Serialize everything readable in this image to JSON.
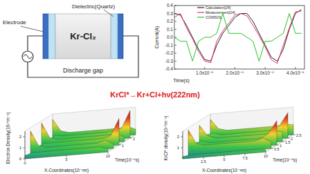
{
  "diagram": {
    "dielectric_label": "Dielectric(Quartz)",
    "electrode_label": "Electrode",
    "gas_label": "Kr-Cl₂",
    "gap_label": "Discharge gap"
  },
  "equation": "KrCl*→Kr+Cl+hν(222nm)",
  "chart_data": [
    {
      "type": "line",
      "x_label": "Time(s)",
      "y_label": "Current(A)",
      "x": [
        0,
        2e-06,
        4e-06,
        6e-06,
        8e-06,
        1e-05,
        1.2e-05,
        1.4e-05,
        1.6e-05,
        1.8e-05,
        2e-05,
        2.2e-05,
        2.4e-05,
        2.6e-05,
        2.8e-05,
        3e-05,
        3.2e-05,
        3.4e-05,
        3.6e-05,
        3.8e-05,
        4e-05,
        4.2e-05
      ],
      "series": [
        {
          "name": "Calculation[24]",
          "color": "#222222",
          "values": [
            0.3,
            0.28,
            0.15,
            0.0,
            -0.15,
            -0.28,
            -0.3,
            -0.1,
            0.05,
            0.15,
            0.25,
            0.3,
            0.3,
            0.2,
            0.05,
            -0.1,
            -0.25,
            -0.3,
            -0.15,
            0.1,
            0.3,
            0.35
          ]
        },
        {
          "name": "Measurement[24]",
          "color": "#e8306a",
          "values": [
            0.25,
            0.3,
            0.12,
            -0.02,
            -0.18,
            -0.3,
            -0.32,
            -0.05,
            0.08,
            0.18,
            0.28,
            0.3,
            0.27,
            0.15,
            0.02,
            -0.12,
            -0.28,
            -0.33,
            -0.1,
            0.12,
            0.32,
            0.33
          ]
        },
        {
          "name": "COMSOL",
          "color": "#22c322",
          "values": [
            0.0,
            -0.05,
            -0.05,
            -0.3,
            -0.05,
            0.0,
            0.0,
            0.05,
            0.3,
            0.05,
            0.05,
            0.05,
            0.0,
            -0.05,
            -0.3,
            -0.05,
            -0.05,
            0.0,
            0.05,
            0.3,
            0.05,
            0.05
          ]
        }
      ],
      "xlim": [
        0,
        4.3e-05
      ],
      "xticks": [
        {
          "value": 1e-05,
          "label": "1.0x10⁻⁵"
        },
        {
          "value": 2e-05,
          "label": "2.0x10⁻⁵"
        },
        {
          "value": 3e-05,
          "label": "3.0x10⁻⁵"
        },
        {
          "value": 4e-05,
          "label": "4.0x10⁻⁵"
        }
      ],
      "ylim": [
        -0.4,
        0.4
      ],
      "yticks": [
        -0.4,
        -0.3,
        -0.2,
        -0.1,
        {
          "value": 0,
          "label": "0.0"
        },
        0.1,
        0.2,
        0.3,
        0.4
      ],
      "grid": false,
      "legend": "top"
    },
    {
      "type": "surface",
      "z_label": "Electron Density(10¹⁶m⁻³)",
      "x_label": "X-Coordinates(10⁻³m)",
      "y_label": "Time(10⁻⁵s)",
      "x": [
        0,
        1,
        2,
        3,
        4,
        5,
        6,
        7,
        8,
        9,
        10
      ],
      "y": [
        0,
        0.5,
        1,
        1.5,
        2,
        2.5
      ],
      "z": [
        [
          0.3,
          0.5,
          0.5,
          0.5,
          0.5,
          0.5,
          0.5,
          0.5,
          0.5,
          0.5,
          0.3
        ],
        [
          2.2,
          0.8,
          0.6,
          0.6,
          0.6,
          0.6,
          0.6,
          0.6,
          0.6,
          0.8,
          0.4
        ],
        [
          0.4,
          0.7,
          0.7,
          0.7,
          0.7,
          0.7,
          0.7,
          0.7,
          0.7,
          0.9,
          2.4
        ],
        [
          2.3,
          0.9,
          0.7,
          0.7,
          0.7,
          0.7,
          0.7,
          0.7,
          0.7,
          0.8,
          0.4
        ],
        [
          0.4,
          0.8,
          0.7,
          0.7,
          0.7,
          0.7,
          0.7,
          0.7,
          0.8,
          1.0,
          2.5
        ],
        [
          2.0,
          0.9,
          0.7,
          0.7,
          0.7,
          0.7,
          0.7,
          0.7,
          0.7,
          0.8,
          0.5
        ]
      ],
      "xlim": [
        0,
        10
      ],
      "xticks": [
        0,
        5,
        10
      ],
      "ylim": [
        0,
        2.5
      ],
      "yticks": [
        1,
        2
      ],
      "zlim": [
        0,
        2.5
      ],
      "zticks": [
        0,
        1,
        2
      ]
    },
    {
      "type": "surface",
      "z_label": "KrCl* density(10¹⁹m⁻³)",
      "x_label": "X-Coordinates(10⁻³m)",
      "y_label": "Time(10⁻⁵s)",
      "x": [
        0,
        1,
        2,
        3,
        4,
        5,
        6,
        7,
        8,
        9,
        10
      ],
      "y": [
        0,
        0.5,
        1,
        1.5,
        2,
        2.5
      ],
      "z": [
        [
          0.2,
          0.3,
          0.3,
          0.3,
          0.3,
          0.3,
          0.3,
          0.3,
          0.3,
          0.3,
          0.2
        ],
        [
          2.3,
          1.0,
          0.8,
          0.8,
          0.8,
          0.8,
          0.8,
          0.8,
          0.8,
          1.0,
          0.6
        ],
        [
          0.8,
          0.9,
          0.7,
          0.7,
          0.7,
          0.7,
          0.7,
          0.7,
          0.7,
          1.1,
          2.2
        ],
        [
          2.1,
          1.1,
          0.8,
          0.8,
          0.8,
          0.8,
          0.8,
          0.8,
          0.8,
          1.0,
          0.9
        ],
        [
          0.9,
          1.0,
          0.8,
          0.8,
          0.8,
          0.8,
          0.8,
          0.8,
          0.8,
          1.2,
          2.3
        ],
        [
          2.0,
          1.1,
          0.9,
          0.9,
          0.9,
          0.9,
          0.9,
          0.9,
          0.9,
          1.0,
          0.9
        ]
      ],
      "xlim": [
        0,
        10
      ],
      "xticks": [
        2.5,
        5,
        7.5,
        10
      ],
      "ylim": [
        0,
        2.5
      ],
      "yticks": [
        0.5,
        1,
        1.5,
        2,
        2.5
      ],
      "zlim": [
        0,
        2.5
      ],
      "zticks": [
        1,
        2
      ]
    }
  ]
}
